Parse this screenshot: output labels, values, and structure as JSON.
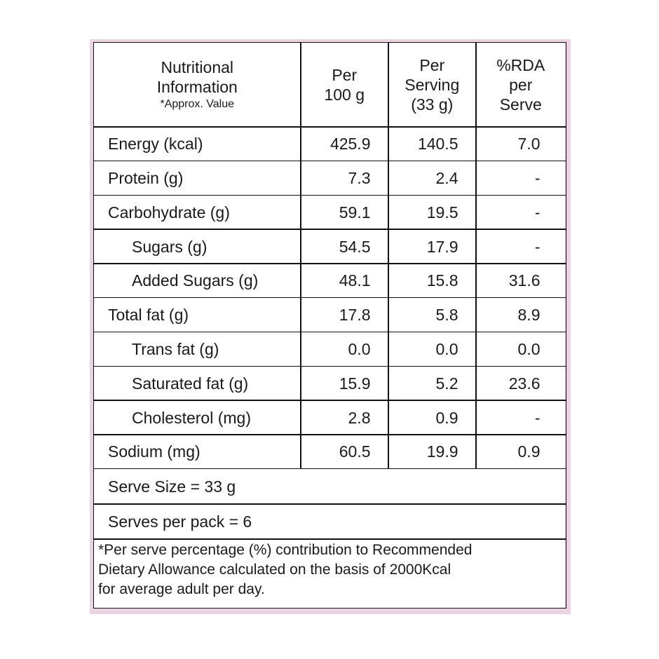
{
  "header": [
    [
      "Nutritional",
      "Information",
      "*Approx. Value"
    ],
    [
      "Per",
      "100 g"
    ],
    [
      "Per",
      "Serving",
      "(33 g)"
    ],
    [
      "%RDA",
      "per",
      "Serve"
    ]
  ],
  "rows": [
    {
      "name": "Energy (kcal)",
      "indent": false,
      "values": [
        "425.9",
        "140.5",
        "7.0"
      ]
    },
    {
      "name": "Protein (g)",
      "indent": false,
      "values": [
        "7.3",
        "2.4",
        "-"
      ]
    },
    {
      "name": "Carbohydrate (g)",
      "indent": false,
      "values": [
        "59.1",
        "19.5",
        "-"
      ]
    },
    {
      "name": "Sugars (g)",
      "indent": true,
      "values": [
        "54.5",
        "17.9",
        "-"
      ]
    },
    {
      "name": "Added Sugars (g)",
      "indent": true,
      "values": [
        "48.1",
        "15.8",
        "31.6"
      ]
    },
    {
      "name": "Total fat (g)",
      "indent": false,
      "values": [
        "17.8",
        "5.8",
        "8.9"
      ]
    },
    {
      "name": "Trans fat (g)",
      "indent": true,
      "values": [
        "0.0",
        "0.0",
        "0.0"
      ]
    },
    {
      "name": "Saturated fat (g)",
      "indent": true,
      "values": [
        "15.9",
        "5.2",
        "23.6"
      ]
    },
    {
      "name": "Cholesterol (mg)",
      "indent": true,
      "values": [
        "2.8",
        "0.9",
        "-"
      ]
    },
    {
      "name": "Sodium (mg)",
      "indent": false,
      "values": [
        "60.5",
        "19.9",
        "0.9"
      ]
    }
  ],
  "serve_size": "Serve Size = 33 g",
  "serves_per_pack": "Serves per pack = 6",
  "note": [
    "*Per serve percentage (%) contribution to Recommended",
    "Dietary Allowance calculated on the basis of 2000Kcal",
    "for average adult per day."
  ]
}
